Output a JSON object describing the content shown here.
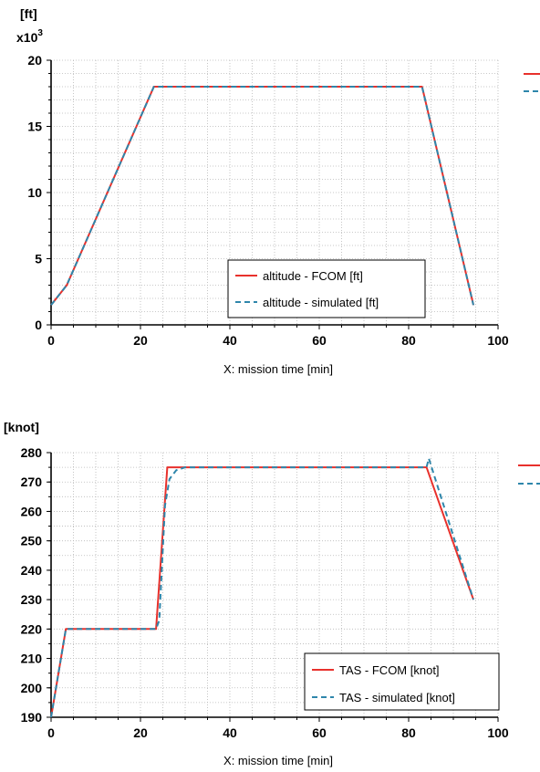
{
  "chart_data": [
    {
      "type": "line",
      "unit_label": "[ft]",
      "multiplier_label": "x10",
      "multiplier_exp": "3",
      "xlabel": "X: mission time [min]",
      "xlim": [
        0,
        100
      ],
      "ylim": [
        0,
        20
      ],
      "xticks": [
        0,
        20,
        40,
        60,
        80,
        100
      ],
      "yticks": [
        0,
        5,
        10,
        15,
        20
      ],
      "grid": true,
      "legend_position": "bottom-right",
      "series": [
        {
          "name": "altitude - FCOM [ft]",
          "color": "#e8312c",
          "dash": "solid",
          "x": [
            0,
            3.5,
            23,
            83,
            94.5
          ],
          "y": [
            1.5,
            3,
            18,
            18,
            1.5
          ]
        },
        {
          "name": "altitude - simulated [ft]",
          "color": "#2e86ab",
          "dash": "dashed",
          "x": [
            0,
            3.5,
            23,
            83,
            94.5
          ],
          "y": [
            1.5,
            3,
            18,
            18,
            1.5
          ]
        }
      ]
    },
    {
      "type": "line",
      "unit_label": "[knot]",
      "xlabel": "X: mission time [min]",
      "xlim": [
        0,
        100
      ],
      "ylim": [
        190,
        280
      ],
      "xticks": [
        0,
        20,
        40,
        60,
        80,
        100
      ],
      "yticks": [
        190,
        200,
        210,
        220,
        230,
        240,
        250,
        260,
        270,
        280
      ],
      "grid": true,
      "legend_position": "bottom-right",
      "series": [
        {
          "name": "TAS - FCOM [knot]",
          "color": "#e8312c",
          "dash": "solid",
          "x": [
            0,
            3.3,
            23.5,
            26,
            84,
            94.5
          ],
          "y": [
            190,
            220,
            220,
            275,
            275,
            230
          ]
        },
        {
          "name": "TAS - simulated [knot]",
          "color": "#2e86ab",
          "dash": "dashed",
          "x": [
            0,
            3.3,
            23.5,
            24.2,
            25.5,
            26.5,
            28,
            30,
            84,
            84.5,
            94.5
          ],
          "y": [
            190,
            220,
            220,
            223,
            262,
            271,
            274,
            275,
            275,
            278,
            230
          ]
        }
      ]
    }
  ]
}
